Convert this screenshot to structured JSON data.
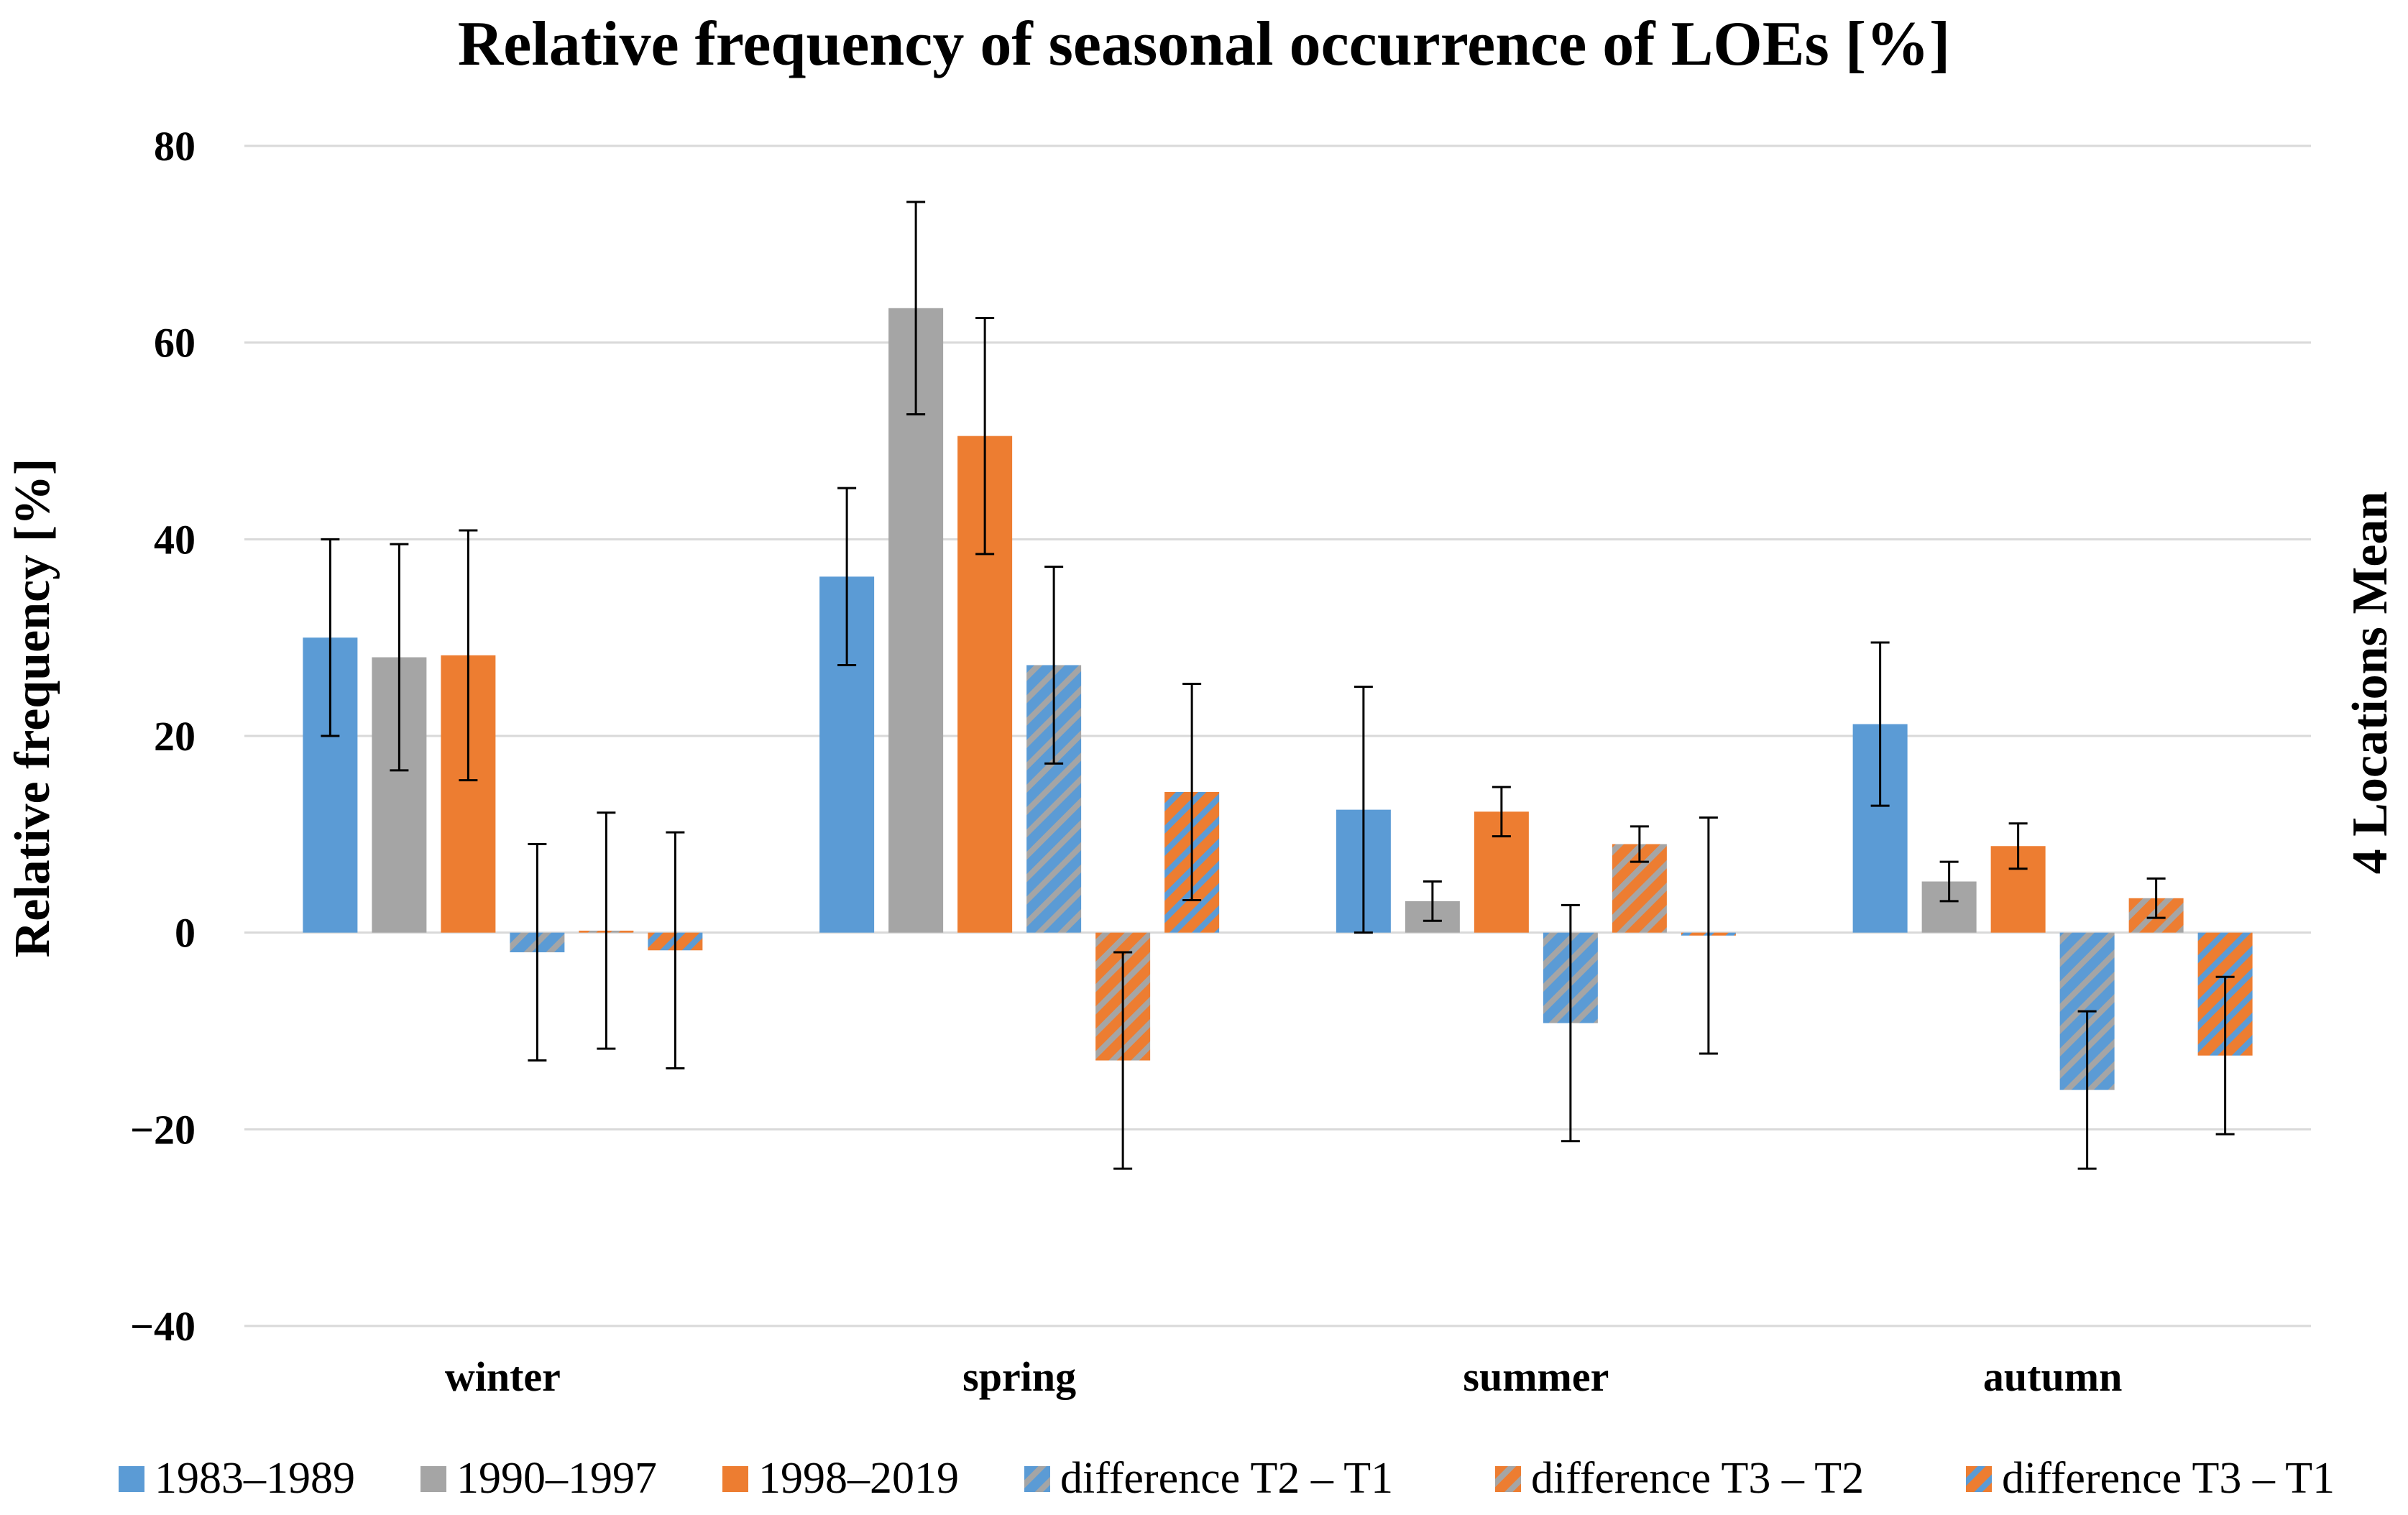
{
  "chart_data": {
    "type": "bar",
    "title": "Relative frequency of seasonal occurrence of LOEs [%]",
    "xlabel": "",
    "ylabel": "Relative frequency [%]",
    "secondary_label": "4 Locations Mean",
    "ylim": [
      -40,
      80
    ],
    "yticks": [
      80,
      60,
      40,
      20,
      0,
      -20,
      -40
    ],
    "ytick_labels": [
      "80",
      "60",
      "40",
      "20",
      "0",
      "−20",
      "−40"
    ],
    "grid": true,
    "legend_position": "bottom",
    "categories": [
      "winter",
      "spring",
      "summer",
      "autumn"
    ],
    "series": [
      {
        "name": "1983–1989",
        "color": "#5b9bd5",
        "pattern": "solid",
        "values": [
          30,
          36.2,
          12.5,
          21.2
        ],
        "error": [
          10,
          9,
          12.5,
          8.3
        ]
      },
      {
        "name": "1990–1997",
        "color": "#a5a5a5",
        "pattern": "solid",
        "values": [
          28,
          63.5,
          3.2,
          5.2
        ],
        "error": [
          11.5,
          10.8,
          2,
          2
        ]
      },
      {
        "name": "1998–2019",
        "color": "#ed7d31",
        "pattern": "solid",
        "values": [
          28.2,
          50.5,
          12.3,
          8.8
        ],
        "error": [
          12.7,
          12,
          2.5,
          2.3
        ]
      },
      {
        "name": "difference T2 – T1",
        "color": "#5b9bd5",
        "stripe": "#a5a5a5",
        "pattern": "hatched",
        "values": [
          -2,
          27.2,
          -9.2,
          -16
        ],
        "error": [
          11,
          10,
          12,
          8
        ]
      },
      {
        "name": "difference T3 – T2",
        "color": "#ed7d31",
        "stripe": "#a5a5a5",
        "pattern": "hatched",
        "values": [
          0.2,
          -13,
          9,
          3.5
        ],
        "error": [
          12,
          11,
          1.8,
          2
        ]
      },
      {
        "name": "difference T3 – T1",
        "color": "#ed7d31",
        "stripe": "#5b9bd5",
        "pattern": "hatched",
        "values": [
          -1.8,
          14.3,
          -0.3,
          -12.5
        ],
        "error": [
          12,
          11,
          12,
          8
        ]
      }
    ]
  }
}
